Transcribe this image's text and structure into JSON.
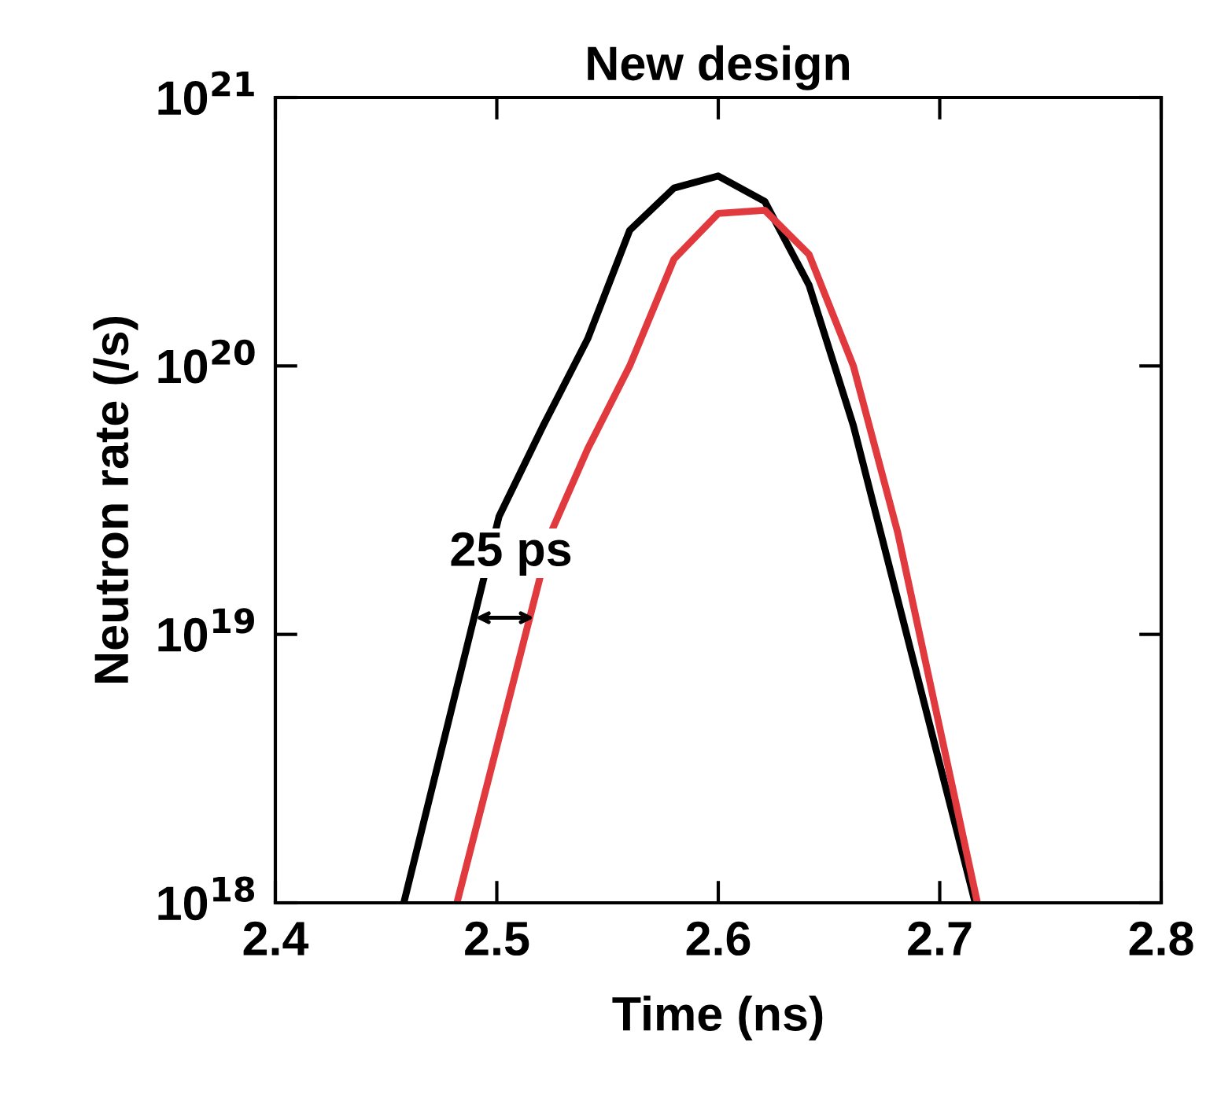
{
  "chart_data": {
    "type": "line",
    "title": "New design",
    "xlabel": "Time (ns)",
    "ylabel": "Neutron rate (/s)",
    "log": "y",
    "xlim": [
      2.4,
      2.8
    ],
    "xticks": [
      2.4,
      2.5,
      2.6,
      2.7,
      2.8
    ],
    "ylim": [
      1e+18,
      1e+21
    ],
    "yticks": [
      {
        "value": 1e+18,
        "label": "10$^{18}$"
      },
      {
        "value": 1e+19,
        "label": "10$^{19}$"
      },
      {
        "value": 1e+20,
        "label": "10$^{20}$"
      },
      {
        "value": 1e+21,
        "label": "10$^{21}$"
      }
    ],
    "grid": false,
    "marker": "none",
    "line_style": "solid",
    "annotations": [
      "25 ps"
    ],
    "series": [
      {
        "color": "#000000",
        "x": [
          2.458,
          2.501,
          2.521,
          2.541,
          2.56,
          2.58,
          2.6,
          2.621,
          2.641,
          2.661,
          2.716
        ],
        "values": [
          1e+18,
          2.75e+19,
          6e+19,
          1.26e+20,
          3.2e+20,
          4.6e+20,
          5.1e+20,
          4.1e+20,
          2e+20,
          6e+19,
          1e+18
        ]
      },
      {
        "color": "#e03a3e",
        "x": [
          2.482,
          2.525,
          2.541,
          2.56,
          2.58,
          2.6,
          2.621,
          2.641,
          2.661,
          2.681,
          2.717
        ],
        "values": [
          1e+18,
          2.45e+19,
          4.9e+19,
          1e+20,
          2.5e+20,
          3.7e+20,
          3.8e+20,
          2.6e+20,
          1e+20,
          2.4e+19,
          1e+18
        ]
      }
    ]
  }
}
